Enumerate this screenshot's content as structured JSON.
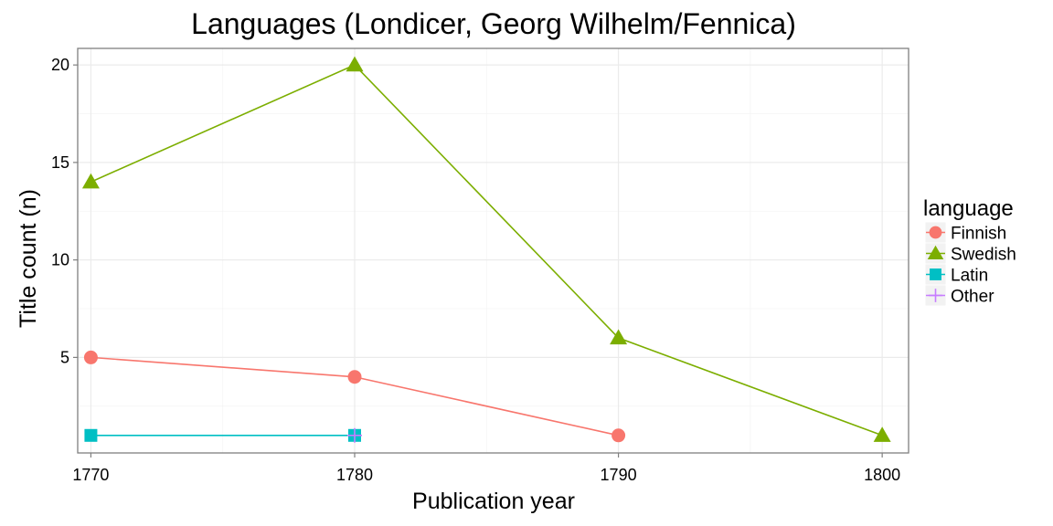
{
  "chart_data": {
    "type": "line",
    "title": "Languages (Londicer, Georg Wilhelm/Fennica)",
    "xlabel": "Publication year",
    "ylabel": "Title count (n)",
    "x_ticks": [
      1770,
      1780,
      1790,
      1800
    ],
    "y_ticks": [
      5,
      10,
      15,
      20
    ],
    "xlim": [
      1769.5,
      1801
    ],
    "ylim": [
      0.1,
      20.85
    ],
    "grid": true,
    "legend_title": "language",
    "legend_position": "right",
    "series": [
      {
        "name": "Finnish",
        "color": "#F8766D",
        "marker": "circle",
        "x": [
          1770,
          1780,
          1790
        ],
        "y": [
          5,
          4,
          1
        ]
      },
      {
        "name": "Swedish",
        "color": "#7CAE00",
        "marker": "triangle",
        "x": [
          1770,
          1780,
          1790,
          1800
        ],
        "y": [
          14,
          20,
          6,
          1
        ]
      },
      {
        "name": "Latin",
        "color": "#00BFC4",
        "marker": "square",
        "x": [
          1770,
          1780
        ],
        "y": [
          1,
          1
        ]
      },
      {
        "name": "Other",
        "color": "#C77CFF",
        "marker": "plus",
        "x": [
          1780
        ],
        "y": [
          1
        ]
      }
    ]
  }
}
